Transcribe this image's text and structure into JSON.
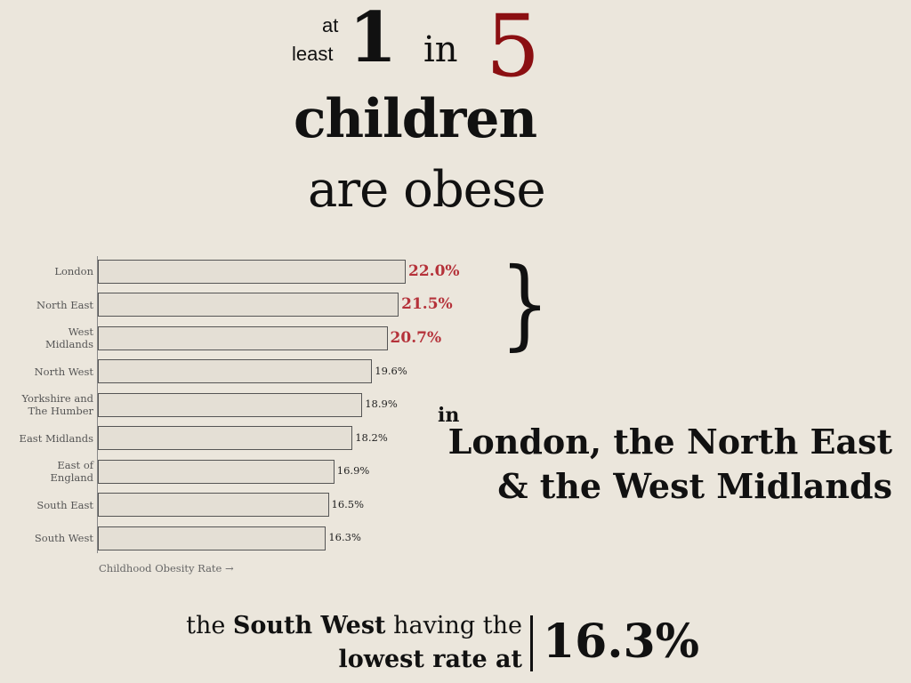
{
  "headline": {
    "at": "at",
    "least": "least",
    "one": "1",
    "in": "in",
    "five": "5",
    "children": "children",
    "are_obese": "are obese"
  },
  "chart_data": {
    "type": "bar",
    "orientation": "horizontal",
    "categories": [
      "London",
      "North East",
      "West\nMidlands",
      "North West",
      "Yorkshire and\nThe Humber",
      "East Midlands",
      "East of\nEngland",
      "South East",
      "South West"
    ],
    "values": [
      22.0,
      21.5,
      20.7,
      19.6,
      18.9,
      18.2,
      16.9,
      16.5,
      16.3
    ],
    "value_labels": [
      "22.0%",
      "21.5%",
      "20.7%",
      "19.6%",
      "18.9%",
      "18.2%",
      "16.9%",
      "16.5%",
      "16.3%"
    ],
    "value_label_colors": [
      "#b5323a",
      "#b5323a",
      "#b5323a",
      "#222222",
      "#222222",
      "#222222",
      "#222222",
      "#222222",
      "#222222"
    ],
    "color": "#e4dfd5",
    "xlim": [
      0,
      22
    ],
    "x_label": "Childhood Obesity Rate →"
  },
  "callout": {
    "in": "in",
    "line1": "London, the North East",
    "line2": "& the West Midlands"
  },
  "footer": {
    "parts": [
      "the",
      "South West",
      "having the",
      "lowest rate at"
    ],
    "figure": "16.3%"
  }
}
